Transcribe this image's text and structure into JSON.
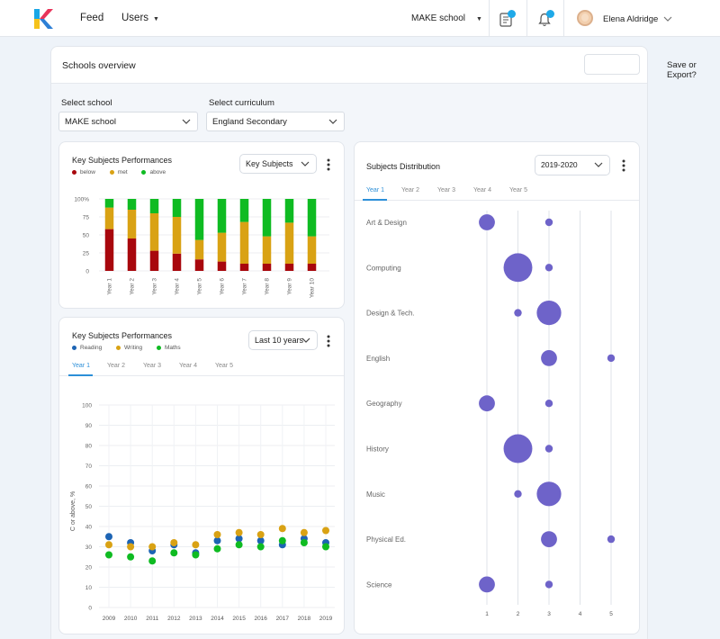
{
  "nav": {
    "feed": "Feed",
    "users": "Users",
    "school": "MAKE school",
    "user_name": "Elena Aldridge"
  },
  "page": {
    "title": "Schools overview",
    "save_export": "Save or Export?"
  },
  "filters": {
    "school_label": "Select school",
    "school_value": "MAKE school",
    "curriculum_label": "Select curriculum",
    "curriculum_value": "England Secondary"
  },
  "colors": {
    "below": "#a8070d",
    "met": "#d9a214",
    "above": "#0fbb22",
    "reading": "#1d64b4",
    "writing": "#d9a214",
    "maths": "#0fbb22",
    "bubble": "#6e63c9",
    "accent": "#2c8fd8"
  },
  "card1": {
    "title": "Key Subjects Performances",
    "legend": [
      "below",
      "met",
      "above"
    ],
    "dropdown": "Key Subjects"
  },
  "card2": {
    "title": "Key Subjects Performances",
    "legend": [
      "Reading",
      "Writing",
      "Maths"
    ],
    "dropdown": "Last 10 years",
    "tabs": [
      "Year 1",
      "Year 2",
      "Year 3",
      "Year 4",
      "Year 5"
    ],
    "active_tab": 0
  },
  "card3": {
    "title": "Subjects Distribution",
    "dropdown": "2019-2020",
    "tabs": [
      "Year 1",
      "Year 2",
      "Year 3",
      "Year 4",
      "Year 5"
    ],
    "active_tab": 0
  },
  "chart_data": [
    {
      "type": "bar",
      "stacked": true,
      "normalized": true,
      "categories": [
        "Year 1",
        "Year 2",
        "Year 3",
        "Year 4",
        "Year 5",
        "Year 6",
        "Year 7",
        "Year 8",
        "Year 9",
        "Year 10"
      ],
      "series": [
        {
          "name": "below",
          "values": [
            58,
            45,
            28,
            24,
            16,
            13,
            10,
            10,
            10,
            10
          ]
        },
        {
          "name": "met",
          "values": [
            30,
            40,
            52,
            51,
            27,
            40,
            58,
            38,
            57,
            38
          ]
        },
        {
          "name": "above",
          "values": [
            12,
            15,
            20,
            25,
            57,
            47,
            32,
            52,
            33,
            52
          ]
        }
      ],
      "ylabel": "",
      "yticks": [
        "100%",
        "75",
        "50",
        "25",
        "0"
      ],
      "ylim": [
        0,
        100
      ],
      "grid": true
    },
    {
      "type": "scatter",
      "x": [
        2009,
        2010,
        2011,
        2012,
        2013,
        2014,
        2015,
        2016,
        2017,
        2018,
        2019
      ],
      "series": [
        {
          "name": "Reading",
          "values": [
            35,
            32,
            28,
            31,
            27,
            33,
            34,
            33,
            31,
            34,
            32
          ]
        },
        {
          "name": "Writing",
          "values": [
            31,
            30,
            30,
            32,
            31,
            36,
            37,
            36,
            39,
            37,
            38
          ]
        },
        {
          "name": "Maths",
          "values": [
            26,
            25,
            23,
            27,
            26,
            29,
            31,
            30,
            33,
            32,
            30
          ]
        }
      ],
      "ylabel": "C or above, %",
      "ylim": [
        0,
        100
      ],
      "yticks": [
        0,
        10,
        20,
        30,
        40,
        50,
        60,
        70,
        80,
        90,
        100
      ],
      "grid": true
    },
    {
      "type": "scatter",
      "bubble": true,
      "xticks": [
        1,
        2,
        3,
        4,
        5
      ],
      "xlim": [
        0.5,
        5.5
      ],
      "categories": [
        "Art & Design",
        "Computing",
        "Design & Tech.",
        "English",
        "Geography",
        "History",
        "Music",
        "Physical Ed.",
        "Science"
      ],
      "points": [
        {
          "subject": "Art & Design",
          "x": 1,
          "size": 3
        },
        {
          "subject": "Art & Design",
          "x": 3,
          "size": 1
        },
        {
          "subject": "Computing",
          "x": 2,
          "size": 6
        },
        {
          "subject": "Computing",
          "x": 3,
          "size": 1
        },
        {
          "subject": "Design & Tech.",
          "x": 2,
          "size": 1
        },
        {
          "subject": "Design & Tech.",
          "x": 3,
          "size": 5
        },
        {
          "subject": "English",
          "x": 3,
          "size": 3
        },
        {
          "subject": "English",
          "x": 5,
          "size": 1
        },
        {
          "subject": "Geography",
          "x": 1,
          "size": 3
        },
        {
          "subject": "Geography",
          "x": 3,
          "size": 1
        },
        {
          "subject": "History",
          "x": 2,
          "size": 6
        },
        {
          "subject": "History",
          "x": 3,
          "size": 1
        },
        {
          "subject": "Music",
          "x": 2,
          "size": 1
        },
        {
          "subject": "Music",
          "x": 3,
          "size": 5
        },
        {
          "subject": "Physical Ed.",
          "x": 3,
          "size": 3
        },
        {
          "subject": "Physical Ed.",
          "x": 5,
          "size": 1
        },
        {
          "subject": "Science",
          "x": 1,
          "size": 3
        },
        {
          "subject": "Science",
          "x": 3,
          "size": 1
        }
      ],
      "grid": true
    }
  ]
}
